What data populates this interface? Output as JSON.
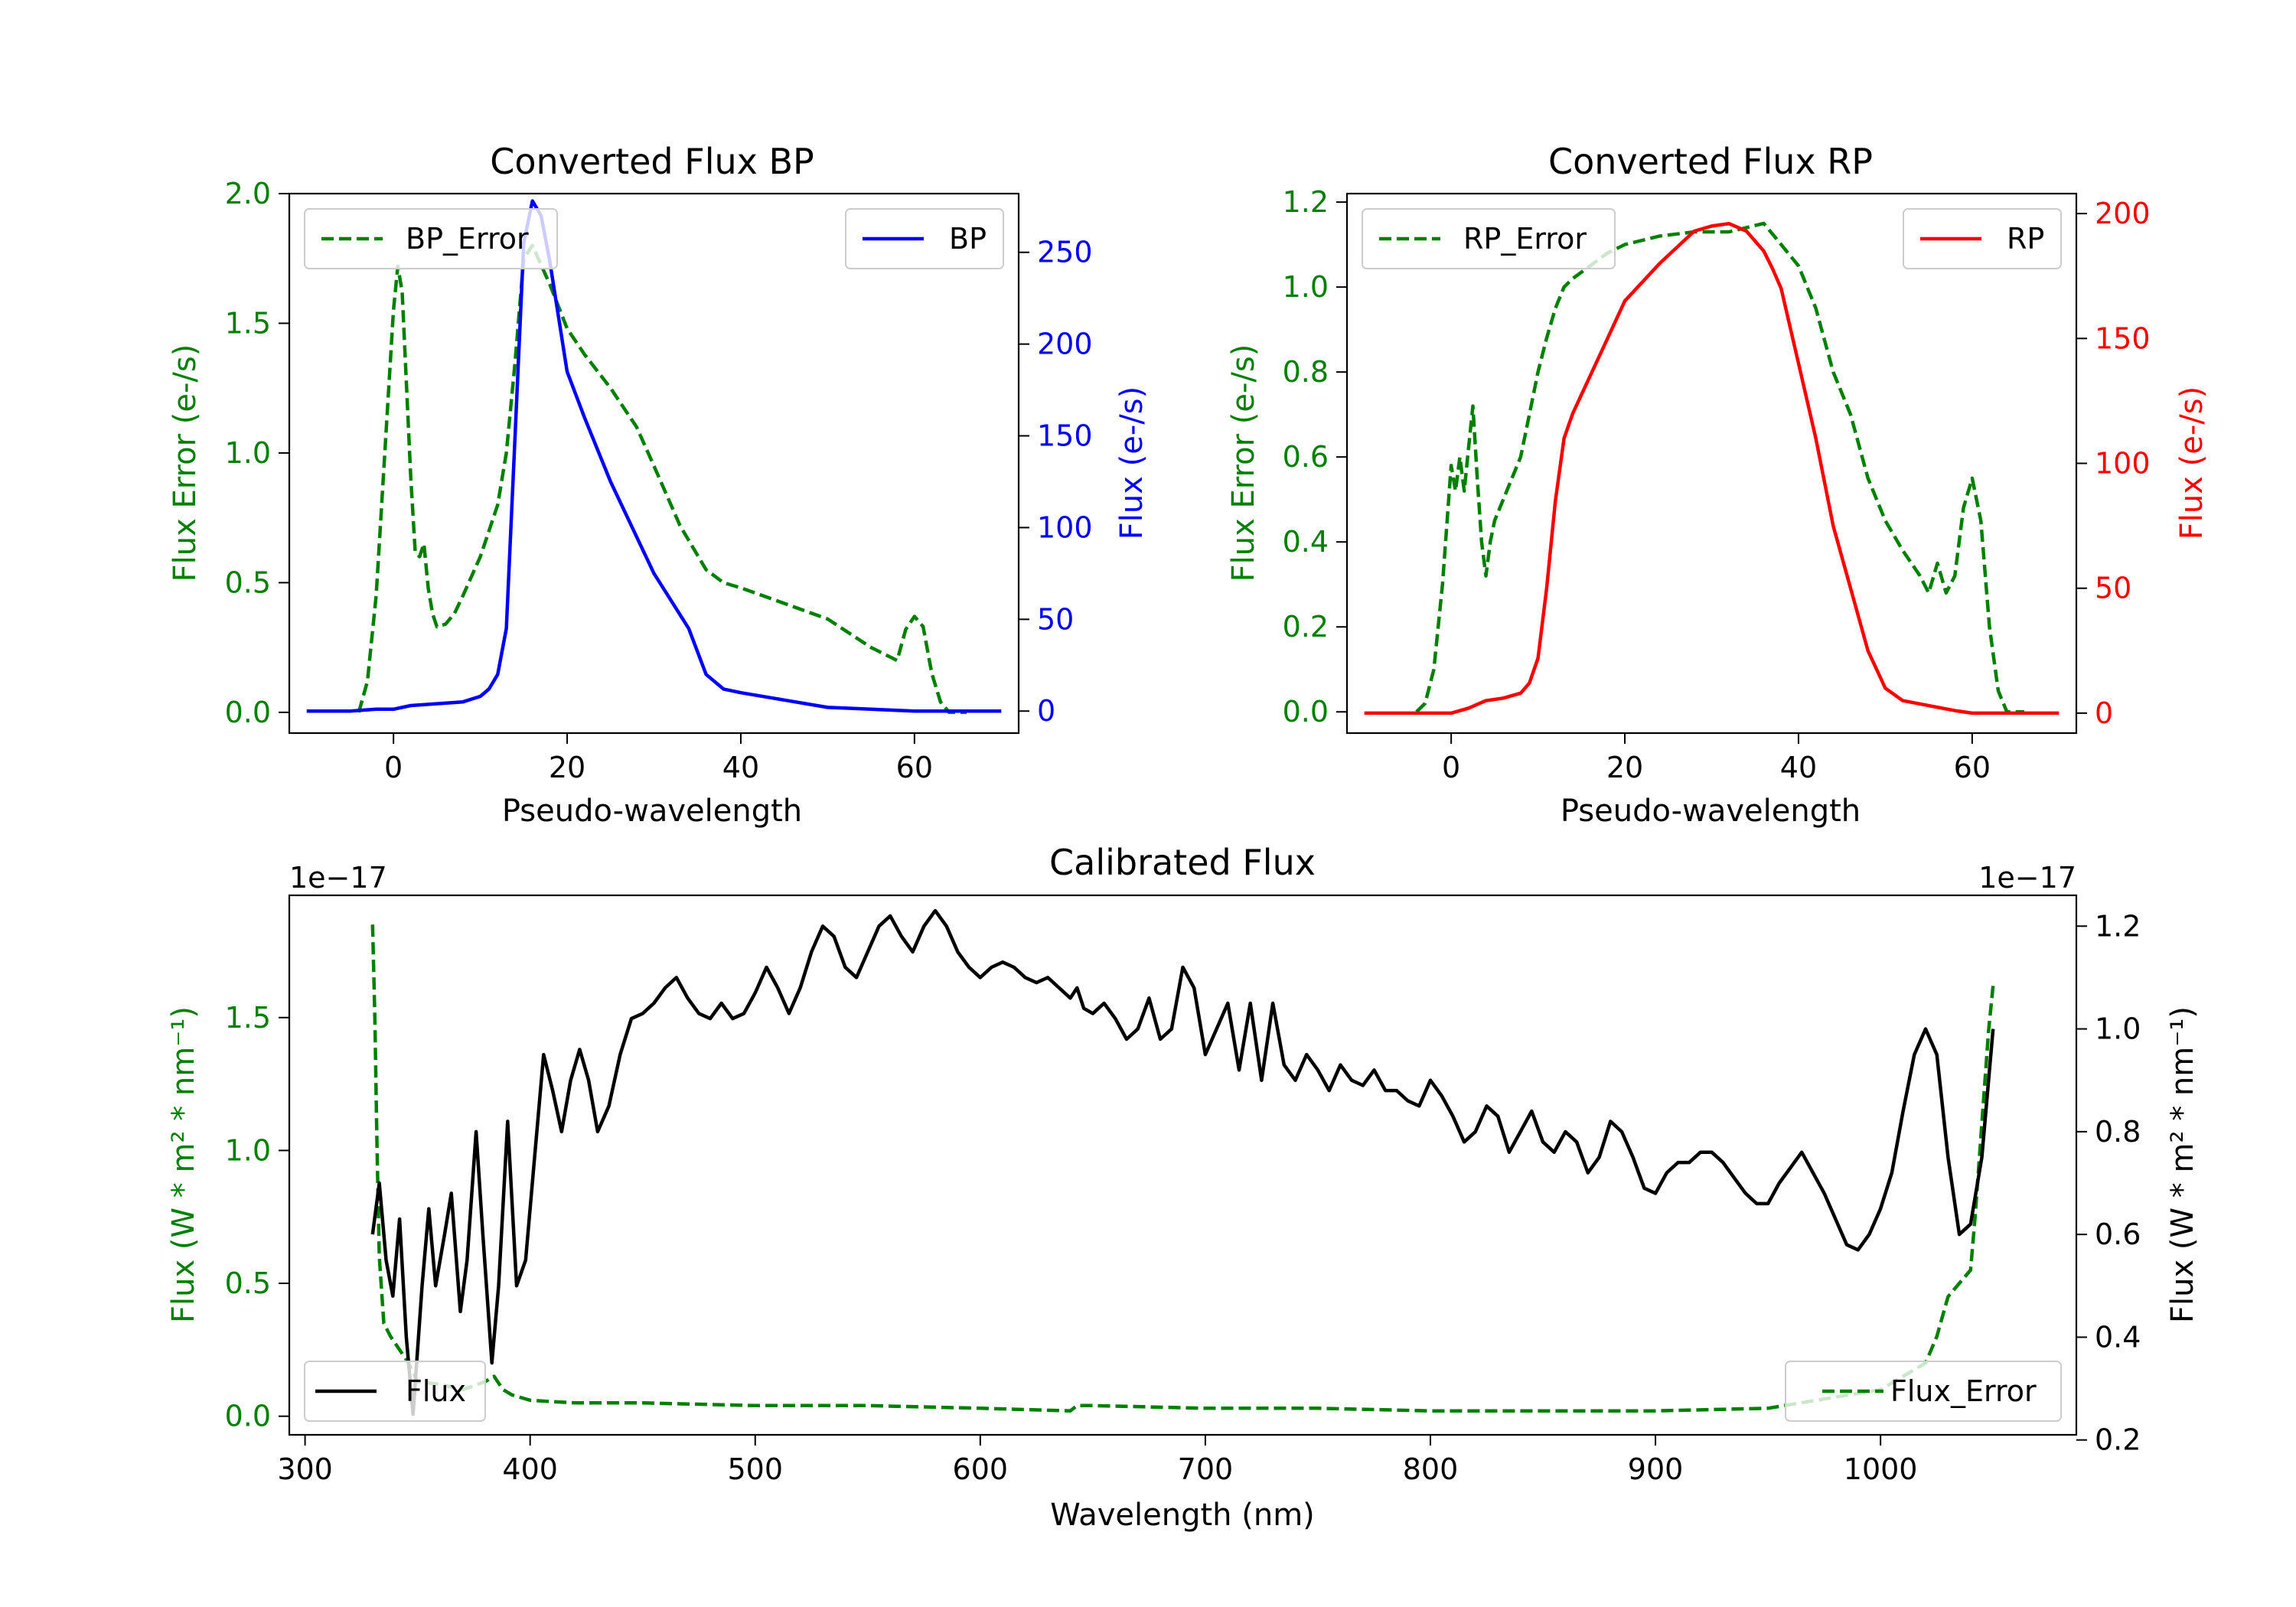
{
  "chart_data": [
    {
      "id": "bp",
      "type": "line",
      "title": "Converted Flux BP",
      "xlabel": "Pseudo-wavelength",
      "xlim": [
        -12,
        72
      ],
      "x_ticks": [
        0,
        20,
        40,
        60
      ],
      "left_axis": {
        "label": "Flux Error (e-/s)",
        "color": "#008000",
        "ylim": [
          -0.08,
          2.0
        ],
        "ticks": [
          0.0,
          0.5,
          1.0,
          1.5,
          2.0
        ],
        "tick_labels": [
          "0.0",
          "0.5",
          "1.0",
          "1.5",
          "2.0"
        ]
      },
      "right_axis": {
        "label": "Flux (e-/s)",
        "color": "#0000ff",
        "ylim": [
          -12,
          282
        ],
        "ticks": [
          0,
          50,
          100,
          150,
          200,
          250
        ],
        "tick_labels": [
          "0",
          "50",
          "100",
          "150",
          "200",
          "250"
        ]
      },
      "legend_left": {
        "label": "BP_Error",
        "position": "upper left"
      },
      "legend_right": {
        "label": "BP",
        "position": "upper right"
      },
      "series": [
        {
          "name": "BP_Error",
          "axis": "left",
          "style": "dashed",
          "color": "#008000",
          "x": [
            -4,
            -3,
            -2,
            -1,
            0,
            0.5,
            1,
            2,
            2.5,
            3,
            3.5,
            4,
            4.5,
            5,
            6,
            7,
            8,
            10,
            12,
            13,
            14,
            15,
            16,
            18,
            20,
            22,
            25,
            28,
            30,
            33,
            36,
            38,
            40,
            45,
            50,
            55,
            58,
            59,
            60,
            61,
            62,
            63,
            64,
            66
          ],
          "y": [
            0.0,
            0.12,
            0.45,
            1.0,
            1.55,
            1.72,
            1.62,
            0.9,
            0.62,
            0.6,
            0.65,
            0.48,
            0.38,
            0.33,
            0.34,
            0.38,
            0.45,
            0.6,
            0.8,
            1.0,
            1.35,
            1.75,
            1.8,
            1.65,
            1.48,
            1.38,
            1.25,
            1.1,
            0.95,
            0.72,
            0.55,
            0.5,
            0.48,
            0.42,
            0.36,
            0.25,
            0.2,
            0.32,
            0.37,
            0.33,
            0.15,
            0.04,
            0.0,
            0.0
          ]
        },
        {
          "name": "BP",
          "axis": "right",
          "style": "solid",
          "color": "#0000ff",
          "x": [
            -10,
            -5,
            -2,
            0,
            2,
            5,
            8,
            10,
            11,
            12,
            13,
            14,
            15,
            16,
            17,
            18,
            19,
            20,
            22,
            25,
            28,
            30,
            32,
            34,
            36,
            38,
            40,
            45,
            50,
            55,
            60,
            65,
            70
          ],
          "y": [
            0,
            0,
            1,
            1,
            3,
            4,
            5,
            8,
            12,
            20,
            45,
            150,
            255,
            278,
            270,
            245,
            215,
            185,
            160,
            125,
            95,
            75,
            60,
            45,
            20,
            12,
            10,
            6,
            2,
            1,
            0,
            0,
            0
          ]
        }
      ]
    },
    {
      "id": "rp",
      "type": "line",
      "title": "Converted Flux RP",
      "xlabel": "Pseudo-wavelength",
      "xlim": [
        -12,
        72
      ],
      "x_ticks": [
        0,
        20,
        40,
        60
      ],
      "left_axis": {
        "label": "Flux Error (e-/s)",
        "color": "#008000",
        "ylim": [
          -0.05,
          1.22
        ],
        "ticks": [
          0.0,
          0.2,
          0.4,
          0.6,
          0.8,
          1.0,
          1.2
        ],
        "tick_labels": [
          "0.0",
          "0.2",
          "0.4",
          "0.6",
          "0.8",
          "1.0",
          "1.2"
        ]
      },
      "right_axis": {
        "label": "Flux (e-/s)",
        "color": "#ff0000",
        "ylim": [
          -8,
          208
        ],
        "ticks": [
          0,
          50,
          100,
          150,
          200
        ],
        "tick_labels": [
          "0",
          "50",
          "100",
          "150",
          "200"
        ]
      },
      "legend_left": {
        "label": "RP_Error",
        "position": "upper left"
      },
      "legend_right": {
        "label": "RP",
        "position": "upper right"
      },
      "series": [
        {
          "name": "RP_Error",
          "axis": "left",
          "style": "dashed",
          "color": "#008000",
          "x": [
            -4,
            -3,
            -2,
            -1,
            0,
            0.5,
            1,
            1.5,
            2,
            2.5,
            3,
            3.5,
            4,
            4.5,
            5,
            6,
            8,
            9,
            10,
            11,
            12,
            13,
            14,
            16,
            18,
            20,
            24,
            28,
            32,
            34,
            36,
            38,
            40,
            42,
            44,
            46,
            48,
            50,
            52,
            54,
            55,
            56,
            57,
            58,
            59,
            60,
            61,
            62,
            63,
            64,
            66
          ],
          "y": [
            0.0,
            0.02,
            0.1,
            0.3,
            0.58,
            0.52,
            0.6,
            0.52,
            0.62,
            0.72,
            0.55,
            0.4,
            0.32,
            0.4,
            0.45,
            0.5,
            0.6,
            0.7,
            0.8,
            0.88,
            0.95,
            1.0,
            1.02,
            1.05,
            1.08,
            1.1,
            1.12,
            1.13,
            1.13,
            1.14,
            1.15,
            1.1,
            1.05,
            0.95,
            0.8,
            0.7,
            0.55,
            0.45,
            0.38,
            0.32,
            0.28,
            0.35,
            0.28,
            0.32,
            0.48,
            0.55,
            0.45,
            0.2,
            0.05,
            0.0,
            0.0
          ]
        },
        {
          "name": "RP",
          "axis": "right",
          "style": "solid",
          "color": "#ff0000",
          "x": [
            -10,
            -5,
            0,
            2,
            4,
            6,
            8,
            9,
            10,
            11,
            12,
            13,
            14,
            16,
            18,
            20,
            24,
            28,
            30,
            32,
            34,
            36,
            37,
            38,
            40,
            42,
            44,
            46,
            48,
            50,
            52,
            55,
            58,
            60,
            65,
            70
          ],
          "y": [
            0,
            0,
            0,
            2,
            5,
            6,
            8,
            12,
            22,
            50,
            85,
            110,
            120,
            135,
            150,
            165,
            180,
            193,
            195,
            196,
            193,
            185,
            178,
            170,
            140,
            110,
            75,
            50,
            25,
            10,
            5,
            3,
            1,
            0,
            0,
            0
          ]
        }
      ]
    },
    {
      "id": "calib",
      "type": "line",
      "title": "Calibrated Flux",
      "xlabel": "Wavelength (nm)",
      "xlim": [
        293,
        1087
      ],
      "x_ticks": [
        300,
        400,
        500,
        600,
        700,
        800,
        900,
        1000
      ],
      "left_axis": {
        "label": "Flux (W * m² * nm⁻¹)",
        "color": "#008000",
        "exponent": "1e−17",
        "ylim": [
          -0.07,
          1.96
        ],
        "ticks": [
          0.0,
          0.5,
          1.0,
          1.5
        ],
        "tick_labels": [
          "0.0",
          "0.5",
          "1.0",
          "1.5"
        ]
      },
      "right_axis": {
        "label": "Flux (W * m² * nm⁻¹)",
        "color": "#000000",
        "exponent": "1e−17",
        "ylim": [
          0.21,
          1.26
        ],
        "ticks": [
          0.2,
          0.4,
          0.6,
          0.8,
          1.0,
          1.2
        ],
        "tick_labels": [
          "0.2",
          "0.4",
          "0.6",
          "0.8",
          "1.0",
          "1.2"
        ]
      },
      "legend_left": {
        "label": "Flux",
        "position": "lower left"
      },
      "legend_right": {
        "label": "Flux_Error",
        "position": "lower right"
      },
      "series": [
        {
          "name": "Flux_Error",
          "axis": "left",
          "style": "dashed",
          "color": "#008000",
          "x": [
            330,
            331,
            332,
            333,
            335,
            338,
            342,
            346,
            350,
            360,
            370,
            380,
            384,
            388,
            392,
            400,
            420,
            450,
            500,
            550,
            600,
            640,
            643,
            650,
            700,
            750,
            800,
            850,
            900,
            950,
            1000,
            1020,
            1025,
            1030,
            1035,
            1040,
            1042,
            1045,
            1048,
            1050
          ],
          "y": [
            1.85,
            1.5,
            1.0,
            0.6,
            0.35,
            0.3,
            0.25,
            0.2,
            0.13,
            0.12,
            0.1,
            0.13,
            0.15,
            0.1,
            0.08,
            0.06,
            0.05,
            0.05,
            0.04,
            0.04,
            0.03,
            0.02,
            0.04,
            0.04,
            0.03,
            0.03,
            0.02,
            0.02,
            0.02,
            0.03,
            0.1,
            0.2,
            0.3,
            0.45,
            0.5,
            0.55,
            0.75,
            1.1,
            1.45,
            1.62
          ]
        },
        {
          "name": "Flux",
          "axis": "right",
          "style": "solid",
          "color": "#000000",
          "x": [
            330,
            333,
            336,
            339,
            342,
            345,
            348,
            352,
            355,
            358,
            362,
            365,
            369,
            372,
            376,
            379,
            383,
            386,
            390,
            394,
            398,
            402,
            406,
            410,
            414,
            418,
            422,
            426,
            430,
            435,
            440,
            445,
            450,
            455,
            460,
            465,
            470,
            475,
            480,
            485,
            490,
            495,
            500,
            505,
            510,
            515,
            520,
            525,
            530,
            535,
            540,
            545,
            550,
            555,
            560,
            565,
            570,
            575,
            580,
            585,
            590,
            595,
            600,
            605,
            610,
            615,
            620,
            625,
            630,
            635,
            640,
            643,
            646,
            650,
            655,
            660,
            665,
            670,
            675,
            680,
            685,
            690,
            695,
            700,
            705,
            710,
            715,
            720,
            725,
            730,
            735,
            740,
            745,
            750,
            755,
            760,
            765,
            770,
            775,
            780,
            785,
            790,
            795,
            800,
            805,
            810,
            815,
            820,
            825,
            830,
            835,
            840,
            845,
            850,
            855,
            860,
            865,
            870,
            875,
            880,
            885,
            890,
            895,
            900,
            905,
            910,
            915,
            920,
            925,
            930,
            935,
            940,
            945,
            950,
            955,
            960,
            965,
            970,
            975,
            980,
            985,
            990,
            995,
            1000,
            1005,
            1010,
            1015,
            1020,
            1025,
            1030,
            1035,
            1040,
            1045,
            1050
          ],
          "y": [
            0.6,
            0.7,
            0.55,
            0.48,
            0.63,
            0.4,
            0.25,
            0.5,
            0.65,
            0.5,
            0.6,
            0.68,
            0.45,
            0.55,
            0.8,
            0.6,
            0.35,
            0.5,
            0.82,
            0.5,
            0.55,
            0.75,
            0.95,
            0.88,
            0.8,
            0.9,
            0.96,
            0.9,
            0.8,
            0.85,
            0.95,
            1.02,
            1.03,
            1.05,
            1.08,
            1.1,
            1.06,
            1.03,
            1.02,
            1.05,
            1.02,
            1.03,
            1.07,
            1.12,
            1.08,
            1.03,
            1.08,
            1.15,
            1.2,
            1.18,
            1.12,
            1.1,
            1.15,
            1.2,
            1.22,
            1.18,
            1.15,
            1.2,
            1.23,
            1.2,
            1.15,
            1.12,
            1.1,
            1.12,
            1.13,
            1.12,
            1.1,
            1.09,
            1.1,
            1.08,
            1.06,
            1.08,
            1.04,
            1.03,
            1.05,
            1.02,
            0.98,
            1.0,
            1.06,
            0.98,
            1.0,
            1.12,
            1.08,
            0.95,
            1.0,
            1.05,
            0.92,
            1.05,
            0.9,
            1.05,
            0.93,
            0.9,
            0.95,
            0.92,
            0.88,
            0.93,
            0.9,
            0.89,
            0.92,
            0.88,
            0.88,
            0.86,
            0.85,
            0.9,
            0.87,
            0.83,
            0.78,
            0.8,
            0.85,
            0.83,
            0.76,
            0.8,
            0.84,
            0.78,
            0.76,
            0.8,
            0.78,
            0.72,
            0.75,
            0.82,
            0.8,
            0.75,
            0.69,
            0.68,
            0.72,
            0.74,
            0.74,
            0.76,
            0.76,
            0.74,
            0.71,
            0.68,
            0.66,
            0.66,
            0.7,
            0.73,
            0.76,
            0.72,
            0.68,
            0.63,
            0.58,
            0.57,
            0.6,
            0.65,
            0.72,
            0.84,
            0.95,
            1.0,
            0.95,
            0.75,
            0.6,
            0.62,
            0.75,
            1.0
          ]
        }
      ]
    }
  ]
}
